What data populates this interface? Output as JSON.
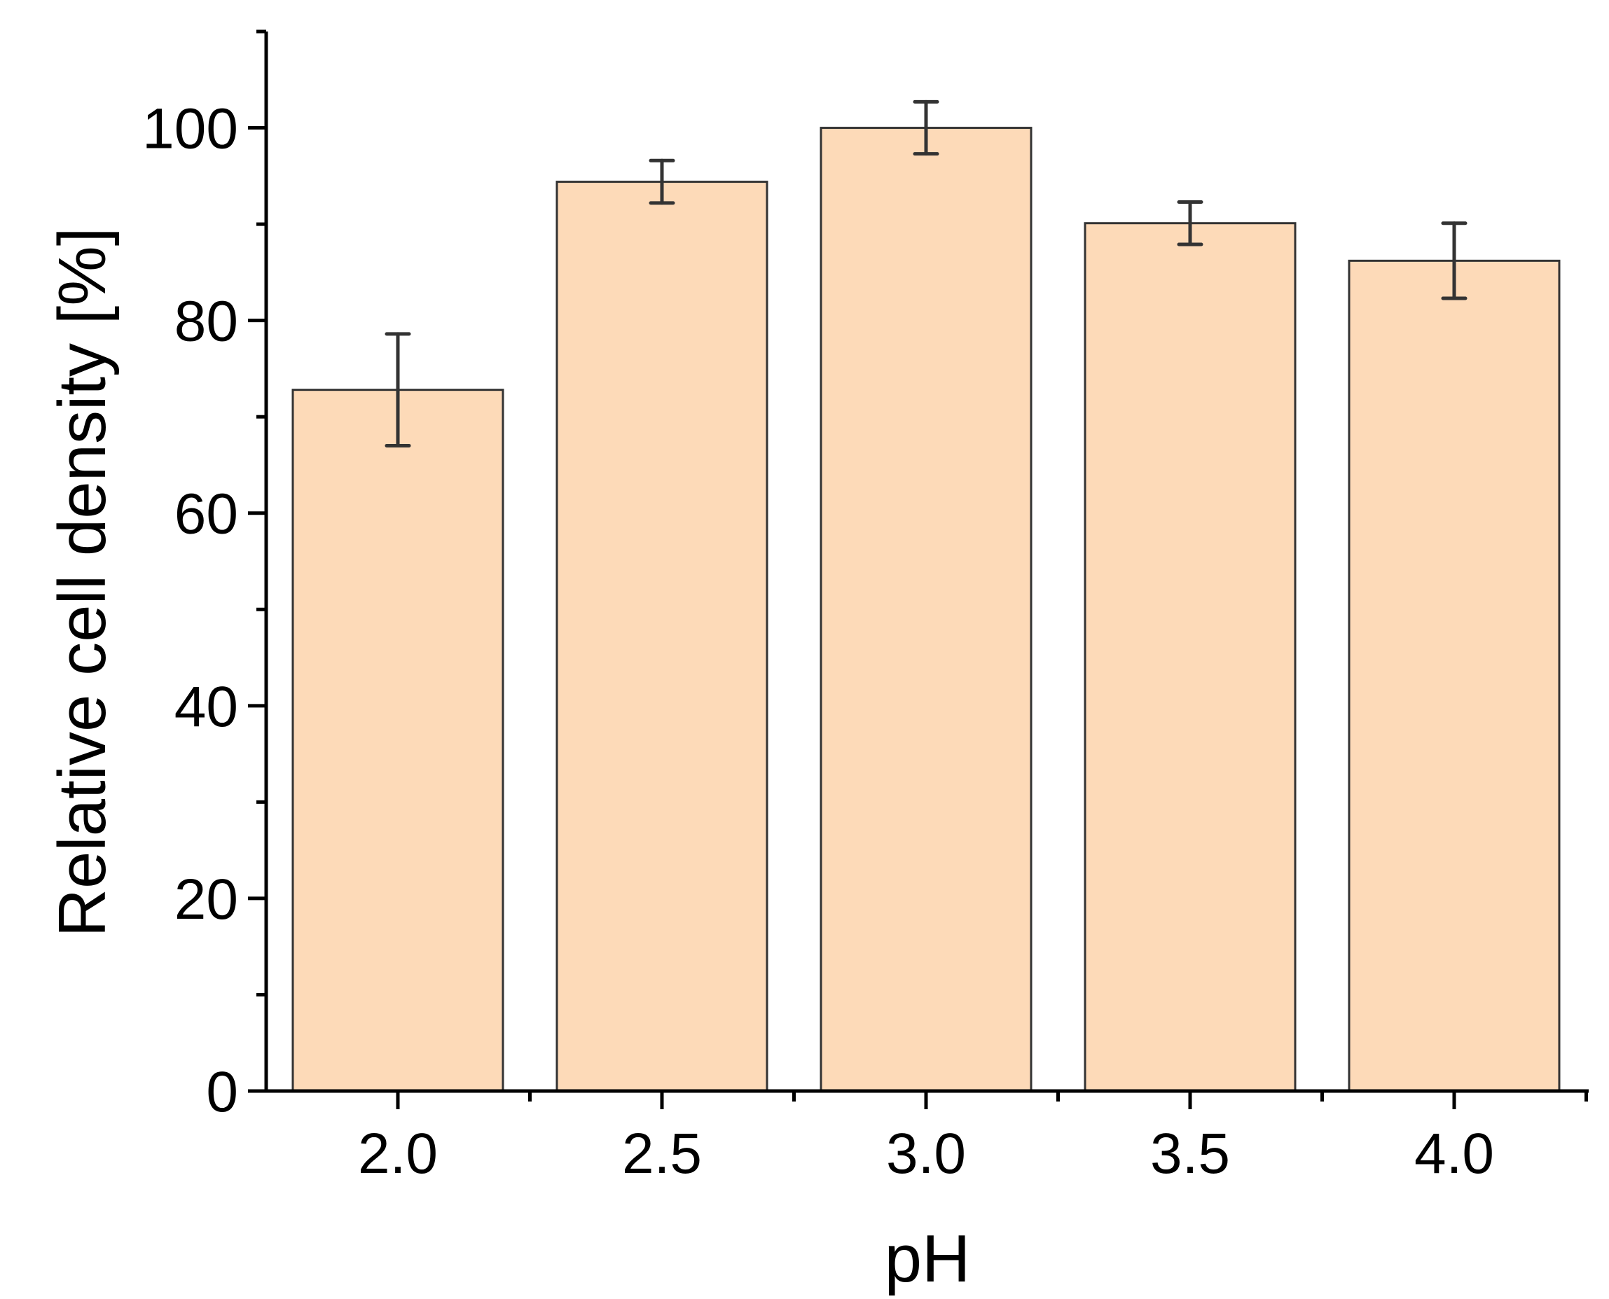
{
  "chart_data": {
    "type": "bar",
    "title": "",
    "xlabel": "pH",
    "ylabel": "Relative cell density [%]",
    "categories": [
      "2.0",
      "2.5",
      "3.0",
      "3.5",
      "4.0"
    ],
    "values": [
      72.8,
      94.4,
      100.0,
      90.1,
      86.2
    ],
    "error": [
      5.8,
      2.2,
      2.7,
      2.2,
      3.9
    ],
    "ylim": [
      0,
      110
    ],
    "yticks": [
      0,
      20,
      40,
      60,
      80,
      100
    ],
    "grid": false,
    "legend": "none",
    "colors": {
      "bar_fill": "#FDDAB8",
      "bar_edge": "#333333",
      "axis": "#000000",
      "error_bar": "#333333"
    }
  }
}
